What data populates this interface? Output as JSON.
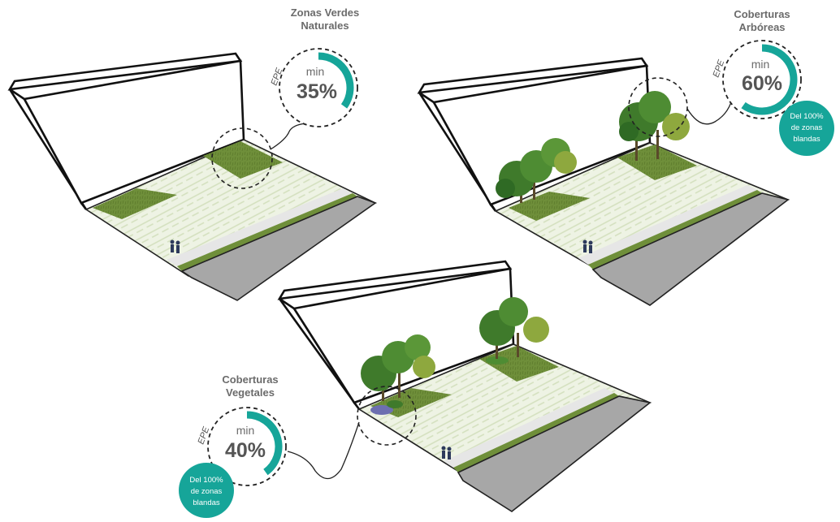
{
  "accent_color": "#16a599",
  "panels": [
    {
      "id": "zonas-verdes",
      "title_line1": "Zonas Verdes",
      "title_line2": "Naturales",
      "side_label": "EPE",
      "min_label": "min",
      "percent_label": "35%",
      "percent_value": 35
    },
    {
      "id": "coberturas-arboreas",
      "title_line1": "Coberturas",
      "title_line2": "Arbóreas",
      "side_label": "EPE",
      "min_label": "min",
      "percent_label": "60%",
      "percent_value": 60,
      "note_line1": "Del 100%",
      "note_line2": "de zonas",
      "note_line3": "blandas"
    },
    {
      "id": "coberturas-vegetales",
      "title_line1": "Coberturas",
      "title_line2": "Vegetales",
      "side_label": "EPE",
      "min_label": "min",
      "percent_label": "40%",
      "percent_value": 40,
      "note_line1": "Del 100%",
      "note_line2": "de zonas",
      "note_line3": "blandas"
    }
  ]
}
